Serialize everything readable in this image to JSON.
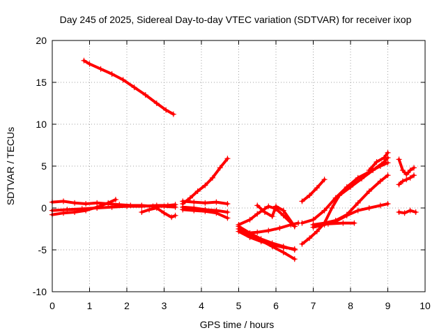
{
  "chart_data": {
    "type": "scatter",
    "title": "Day 245 of 2025, Sidereal Day-to-day VTEC variation (SDTVAR) for receiver ixop",
    "xlabel": "GPS time / hours",
    "ylabel": "SDTVAR / TECUs",
    "xlim": [
      0,
      10
    ],
    "ylim": [
      -10,
      20
    ],
    "xticks": [
      0,
      1,
      2,
      3,
      4,
      5,
      6,
      7,
      8,
      9,
      10
    ],
    "yticks": [
      -10,
      -5,
      0,
      5,
      10,
      15,
      20
    ],
    "grid": true,
    "marker": "+",
    "color": "#ff0000",
    "series": [
      {
        "name": "s1",
        "x": [
          0.85,
          1.0,
          1.3,
          1.6,
          1.9,
          2.2,
          2.5,
          2.8,
          3.05,
          3.25
        ],
        "y": [
          17.6,
          17.2,
          16.6,
          16.0,
          15.3,
          14.4,
          13.5,
          12.5,
          11.7,
          11.2
        ]
      },
      {
        "name": "s2",
        "x": [
          0.0,
          0.3,
          0.6,
          0.9,
          1.2,
          1.5,
          1.8,
          2.1,
          2.4,
          2.7,
          3.0,
          3.3
        ],
        "y": [
          0.7,
          0.8,
          0.6,
          0.5,
          0.6,
          0.5,
          0.4,
          0.3,
          0.3,
          0.2,
          0.2,
          0.1
        ]
      },
      {
        "name": "s3",
        "x": [
          0.0,
          0.3,
          0.6,
          0.9,
          1.2,
          1.5,
          1.7
        ],
        "y": [
          -0.8,
          -0.6,
          -0.5,
          -0.3,
          0.1,
          0.6,
          1.0
        ]
      },
      {
        "name": "s4",
        "x": [
          0.0,
          0.4,
          0.8,
          1.2,
          1.6,
          2.0,
          2.4,
          2.8,
          3.1,
          3.3
        ],
        "y": [
          -0.3,
          -0.2,
          -0.1,
          0.0,
          0.1,
          0.2,
          0.2,
          0.3,
          0.3,
          0.4
        ]
      },
      {
        "name": "s5",
        "x": [
          2.4,
          2.6,
          2.8,
          3.0,
          3.2,
          3.3
        ],
        "y": [
          -0.5,
          -0.2,
          0.0,
          -0.6,
          -1.1,
          -0.9
        ]
      },
      {
        "name": "s6",
        "x": [
          3.5,
          3.7,
          3.9,
          4.1,
          4.3,
          4.5,
          4.7
        ],
        "y": [
          0.5,
          1.2,
          2.0,
          2.7,
          3.6,
          4.8,
          5.9
        ]
      },
      {
        "name": "s7",
        "x": [
          3.5,
          3.8,
          4.1,
          4.4,
          4.7
        ],
        "y": [
          0.8,
          0.7,
          0.6,
          0.7,
          0.5
        ]
      },
      {
        "name": "s8",
        "x": [
          3.5,
          3.8,
          4.1,
          4.4,
          4.7
        ],
        "y": [
          0.1,
          0.0,
          -0.2,
          -0.3,
          -0.5
        ]
      },
      {
        "name": "s9",
        "x": [
          3.5,
          3.8,
          4.1,
          4.4,
          4.7
        ],
        "y": [
          -0.2,
          -0.3,
          -0.4,
          -0.6,
          -1.2
        ]
      },
      {
        "name": "s10",
        "x": [
          5.0,
          5.3,
          5.6,
          5.9,
          6.2,
          6.5
        ],
        "y": [
          -2.2,
          -3.0,
          -3.7,
          -4.2,
          -4.6,
          -5.0
        ]
      },
      {
        "name": "s11",
        "x": [
          5.0,
          5.3,
          5.6,
          5.9,
          6.2,
          6.5
        ],
        "y": [
          -2.8,
          -3.5,
          -4.0,
          -4.4,
          -4.7,
          -4.9
        ]
      },
      {
        "name": "s12",
        "x": [
          5.0,
          5.3,
          5.6,
          5.9,
          6.2,
          6.5
        ],
        "y": [
          -2.5,
          -3.2,
          -3.9,
          -4.6,
          -5.3,
          -6.1
        ]
      },
      {
        "name": "s13",
        "x": [
          5.0,
          5.3,
          5.5,
          5.7,
          5.8,
          6.0,
          6.2,
          6.5
        ],
        "y": [
          -2.0,
          -1.4,
          -0.7,
          -0.1,
          0.2,
          -0.1,
          -0.9,
          -2.2
        ]
      },
      {
        "name": "s14",
        "x": [
          5.2,
          5.5,
          5.8,
          6.1,
          6.4,
          6.6
        ],
        "y": [
          -3.0,
          -2.9,
          -2.7,
          -2.4,
          -2.0,
          -1.8
        ]
      },
      {
        "name": "s15",
        "x": [
          5.5,
          5.7,
          5.9,
          6.0,
          6.2,
          6.5
        ],
        "y": [
          0.3,
          -0.5,
          -1.0,
          0.2,
          -0.3,
          -2.2
        ]
      },
      {
        "name": "s16",
        "x": [
          6.7,
          6.9,
          7.1,
          7.3
        ],
        "y": [
          0.8,
          1.5,
          2.4,
          3.4
        ]
      },
      {
        "name": "s17",
        "x": [
          6.7,
          6.9,
          7.1,
          7.3,
          7.5,
          7.7,
          8.0,
          8.3,
          8.6,
          8.9,
          9.0
        ],
        "y": [
          -4.3,
          -3.6,
          -2.8,
          -1.8,
          0.0,
          1.5,
          2.5,
          3.5,
          4.5,
          5.5,
          6.0
        ]
      },
      {
        "name": "s18",
        "x": [
          6.7,
          7.0,
          7.3,
          7.6,
          7.9,
          8.2,
          8.5,
          8.8,
          9.0
        ],
        "y": [
          -1.8,
          -1.4,
          -0.3,
          1.2,
          2.5,
          3.6,
          4.3,
          5.0,
          5.4
        ]
      },
      {
        "name": "s19",
        "x": [
          7.0,
          7.3,
          7.6,
          7.9,
          8.2,
          8.5,
          8.8,
          9.0
        ],
        "y": [
          -2.0,
          -1.8,
          -1.5,
          -0.8,
          0.6,
          2.0,
          3.2,
          3.9
        ]
      },
      {
        "name": "s20",
        "x": [
          7.0,
          7.3,
          7.6,
          7.9,
          8.2,
          8.5,
          8.8,
          9.0
        ],
        "y": [
          -2.3,
          -2.0,
          -1.6,
          -0.9,
          -0.3,
          0.0,
          0.3,
          0.5
        ]
      },
      {
        "name": "s21",
        "x": [
          7.0,
          7.4,
          7.8,
          8.1
        ],
        "y": [
          -2.0,
          -1.9,
          -1.8,
          -1.8
        ]
      },
      {
        "name": "s22",
        "x": [
          8.5,
          8.7,
          8.9,
          9.0
        ],
        "y": [
          4.5,
          5.5,
          6.0,
          6.6
        ]
      },
      {
        "name": "s23",
        "x": [
          9.3,
          9.4,
          9.5,
          9.6,
          9.7
        ],
        "y": [
          5.8,
          4.5,
          4.0,
          4.5,
          4.8
        ]
      },
      {
        "name": "s24",
        "x": [
          9.3,
          9.4,
          9.5,
          9.6,
          9.7
        ],
        "y": [
          2.8,
          3.2,
          3.4,
          3.6,
          3.9
        ]
      },
      {
        "name": "s25",
        "x": [
          9.3,
          9.45,
          9.6,
          9.75
        ],
        "y": [
          -0.5,
          -0.6,
          -0.3,
          -0.5
        ]
      }
    ]
  }
}
